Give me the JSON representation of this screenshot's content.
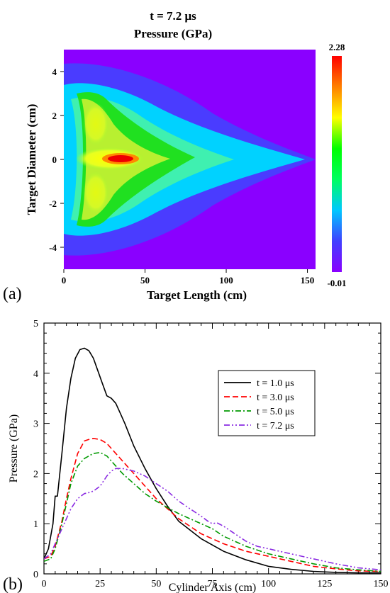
{
  "panel_a": {
    "label": "(a)",
    "title_line1": "t = 7.2 μs",
    "title_line2": "Pressure (GPa)",
    "colorbar": {
      "max_label": "2.28",
      "min_label": "-0.01"
    }
  },
  "panel_b": {
    "label": "(b)"
  },
  "chart_data": [
    {
      "type": "heatmap",
      "title": "t = 7.2 μs Pressure (GPa)",
      "xlabel": "Target Length (cm)",
      "ylabel": "Target Diameter (cm)",
      "xlim": [
        0,
        155
      ],
      "ylim": [
        -5,
        5
      ],
      "x_ticks": [
        0,
        50,
        100,
        150
      ],
      "y_ticks": [
        -4,
        -2,
        0,
        2,
        4
      ],
      "value_range": [
        -0.01,
        2.28
      ],
      "colorscale": [
        "#8a00ff",
        "#4040ff",
        "#00c8ff",
        "#00ff60",
        "#00ff00",
        "#ffff00",
        "#ff8000",
        "#ff0000"
      ]
    },
    {
      "type": "line",
      "xlabel": "Cylinder Axis (cm)",
      "ylabel": "Pressure (GPa)",
      "xlim": [
        0,
        150
      ],
      "ylim": [
        0,
        5
      ],
      "x_ticks": [
        0,
        25,
        50,
        75,
        100,
        125,
        150
      ],
      "y_ticks": [
        0,
        1,
        2,
        3,
        4,
        5
      ],
      "legend_position": "center-right",
      "series": [
        {
          "name": "t = 1.0 μs",
          "color": "#000000",
          "dash": "solid",
          "x": [
            0,
            2,
            4,
            5,
            6,
            8,
            10,
            12,
            14,
            16,
            18,
            20,
            22,
            24,
            26,
            28,
            30,
            32,
            34,
            36,
            40,
            45,
            50,
            55,
            60,
            70,
            80,
            90,
            100,
            110,
            120,
            130,
            140,
            150
          ],
          "y": [
            0.3,
            0.5,
            1.0,
            1.55,
            1.55,
            2.4,
            3.3,
            3.9,
            4.3,
            4.47,
            4.5,
            4.45,
            4.3,
            4.05,
            3.8,
            3.55,
            3.5,
            3.4,
            3.2,
            3.0,
            2.55,
            2.1,
            1.7,
            1.35,
            1.05,
            0.7,
            0.45,
            0.28,
            0.15,
            0.09,
            0.05,
            0.03,
            0.02,
            0.02
          ]
        },
        {
          "name": "t = 3.0 μs",
          "color": "#ff0000",
          "dash": "dashed",
          "x": [
            0,
            3,
            5,
            8,
            10,
            12,
            15,
            18,
            20,
            22,
            25,
            28,
            30,
            35,
            40,
            45,
            50,
            55,
            60,
            70,
            80,
            90,
            100,
            110,
            120,
            130,
            140,
            150
          ],
          "y": [
            0.3,
            0.35,
            0.55,
            1.05,
            1.5,
            1.9,
            2.4,
            2.65,
            2.68,
            2.7,
            2.68,
            2.6,
            2.5,
            2.25,
            2.0,
            1.75,
            1.5,
            1.3,
            1.1,
            0.8,
            0.6,
            0.45,
            0.35,
            0.25,
            0.15,
            0.1,
            0.06,
            0.05
          ]
        },
        {
          "name": "t = 5.0 μs",
          "color": "#009900",
          "dash": "dashdot",
          "x": [
            0,
            3,
            5,
            8,
            10,
            12,
            15,
            18,
            20,
            22,
            25,
            28,
            30,
            35,
            40,
            45,
            50,
            55,
            60,
            65,
            70,
            75,
            80,
            90,
            100,
            110,
            120,
            130,
            140,
            150
          ],
          "y": [
            0.25,
            0.3,
            0.5,
            1.0,
            1.4,
            1.8,
            2.15,
            2.3,
            2.35,
            2.4,
            2.42,
            2.35,
            2.25,
            2.0,
            1.8,
            1.6,
            1.45,
            1.32,
            1.2,
            1.1,
            1.0,
            0.9,
            0.75,
            0.55,
            0.4,
            0.3,
            0.2,
            0.12,
            0.08,
            0.05
          ]
        },
        {
          "name": "t = 7.2 μs",
          "color": "#8a2be2",
          "dash": "dashdotdot",
          "x": [
            0,
            3,
            5,
            8,
            10,
            12,
            15,
            18,
            20,
            22,
            25,
            28,
            30,
            32,
            35,
            40,
            45,
            50,
            55,
            60,
            65,
            70,
            73,
            75,
            77,
            80,
            85,
            90,
            95,
            100,
            110,
            120,
            130,
            140,
            150
          ],
          "y": [
            0.3,
            0.4,
            0.6,
            0.9,
            1.1,
            1.3,
            1.5,
            1.6,
            1.62,
            1.65,
            1.75,
            1.95,
            2.05,
            2.1,
            2.1,
            2.05,
            1.95,
            1.8,
            1.65,
            1.45,
            1.3,
            1.15,
            1.05,
            1.0,
            1.02,
            0.95,
            0.8,
            0.65,
            0.55,
            0.5,
            0.4,
            0.3,
            0.2,
            0.12,
            0.08
          ]
        }
      ]
    }
  ]
}
